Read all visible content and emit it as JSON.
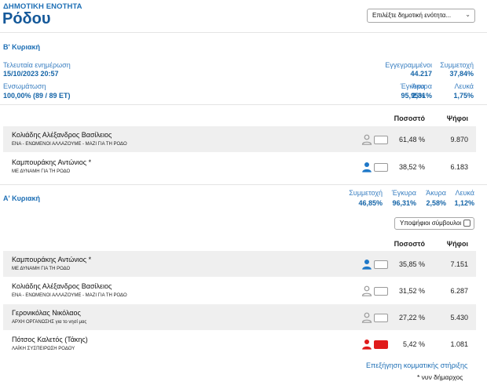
{
  "header": {
    "subtitle": "ΔΗΜΟΤΙΚΗ ΕΝΟΤΗΤΑ",
    "title": "Ρόδου",
    "select_value": "Επιλέξτε δημοτική ενότητα..."
  },
  "round_b": {
    "title": "Β' Κυριακή",
    "last_update_label": "Τελευταία ενημέρωση",
    "last_update_value": "15/10/2023 20:57",
    "registered_label": "Εγγεγραμμένοι",
    "registered_value": "44.217",
    "turnout_label": "Συμμετοχή",
    "turnout_value": "37,84%",
    "integration_label": "Ενσωμάτωση",
    "integration_value": "100,00% (89 / 89 ΕΤ)",
    "valid_label": "Έγκυρα",
    "valid_value": "95,95%",
    "invalid_label": "Άκυρα",
    "invalid_value": "2,31%",
    "blank_label": "Λευκά",
    "blank_value": "1,75%",
    "col_percent": "Ποσοστό",
    "col_votes": "Ψήφοι",
    "candidates": [
      {
        "name": "Κολιάδης Αλέξανδρος Βασίλειος",
        "party": "ΕΝΑ - ΕΝΩΜΕΝΟΙ ΑΛΛΑΖΟΥΜΕ - ΜΑΖΙ ΓΙΑ ΤΗ ΡΟΔΟ",
        "percent": "61,48 %",
        "votes": "9.870",
        "icon_color": "#9a9a9a"
      },
      {
        "name": "Καμπουράκης Αντώνιος *",
        "party": "ΜΕ ΔΥΝΑΜΗ ΓΙΑ ΤΗ ΡΟΔΟ",
        "percent": "38,52 %",
        "votes": "6.183",
        "icon_color": "#1e78c8"
      }
    ]
  },
  "round_a": {
    "title": "Α' Κυριακή",
    "turnout_label": "Συμμετοχή",
    "turnout_value": "46,85%",
    "valid_label": "Έγκυρα",
    "valid_value": "96,31%",
    "invalid_label": "Άκυρα",
    "invalid_value": "2,58%",
    "blank_label": "Λευκά",
    "blank_value": "1,12%",
    "councillors_label": "Υποψήφιοι σύμβουλοι",
    "col_percent": "Ποσοστό",
    "col_votes": "Ψήφοι",
    "candidates": [
      {
        "name": "Καμπουράκης Αντώνιος *",
        "party": "ΜΕ ΔΥΝΑΜΗ ΓΙΑ ΤΗ ΡΟΔΟ",
        "percent": "35,85 %",
        "votes": "7.151",
        "icon_color": "#1e78c8"
      },
      {
        "name": "Κολιάδης Αλέξανδρος Βασίλειος",
        "party": "ΕΝΑ - ΕΝΩΜΕΝΟΙ ΑΛΛΑΖΟΥΜΕ - ΜΑΖΙ ΓΙΑ ΤΗ ΡΟΔΟ",
        "percent": "31,52 %",
        "votes": "6.287",
        "icon_color": "#9a9a9a"
      },
      {
        "name": "Γερονικόλας Νικόλαος",
        "party": "ΑΡΧΗ ΟΡΓΑΝΩΣΗΣ για το νησί μας",
        "percent": "27,22 %",
        "votes": "5.430",
        "icon_color": "#9a9a9a"
      },
      {
        "name": "Πότσος Καλετός (Τάκης)",
        "party": "ΛΑΪΚΗ ΣΥΣΠΕΙΡΩΣΗ ΡΟΔΟΥ",
        "percent": "5,42 %",
        "votes": "1.081",
        "icon_color": "#e01b1b"
      }
    ]
  },
  "footer": {
    "explain_link": "Επεξήγηση κομματικής στήριξης",
    "note": "* νυν δήμαρχος"
  }
}
